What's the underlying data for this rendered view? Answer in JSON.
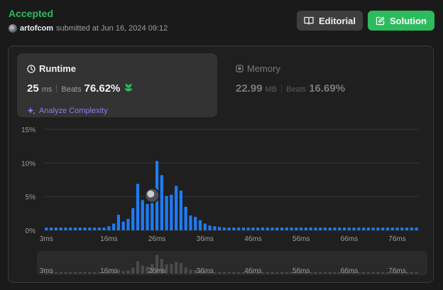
{
  "header": {
    "status": "Accepted",
    "username": "artofcom",
    "submitted_text": "submitted at Jun 16, 2024 09:12"
  },
  "buttons": {
    "editorial": "Editorial",
    "solution": "Solution"
  },
  "runtime": {
    "title": "Runtime",
    "value": "25",
    "unit": "ms",
    "beats_label": "Beats",
    "beats_pct": "76.62%",
    "analyze_label": "Analyze Complexity"
  },
  "memory": {
    "title": "Memory",
    "value": "22.99",
    "unit": "MB",
    "beats_label": "Beats",
    "beats_pct": "16.69%"
  },
  "colors": {
    "accent_green": "#2cbb5d",
    "bar_blue": "#1e7cf5",
    "purple": "#8b7fe8"
  },
  "chart_data": {
    "type": "bar",
    "xlabel": "",
    "ylabel": "",
    "ylim": [
      0,
      15
    ],
    "y_ticks": [
      "0%",
      "5%",
      "10%",
      "15%"
    ],
    "x_ticks": [
      {
        "label": "3ms",
        "at": 3
      },
      {
        "label": "16ms",
        "at": 16
      },
      {
        "label": "26ms",
        "at": 26
      },
      {
        "label": "36ms",
        "at": 36
      },
      {
        "label": "46ms",
        "at": 46
      },
      {
        "label": "56ms",
        "at": 56
      },
      {
        "label": "66ms",
        "at": 66
      },
      {
        "label": "76ms",
        "at": 76
      }
    ],
    "x_start": 3,
    "x_end": 80,
    "values": [
      0.4,
      0.4,
      0.4,
      0.4,
      0.4,
      0.4,
      0.4,
      0.4,
      0.4,
      0.4,
      0.4,
      0.4,
      0.4,
      0.6,
      1.0,
      2.3,
      1.3,
      1.7,
      3.3,
      6.9,
      4.5,
      3.9,
      5.4,
      10.3,
      8.2,
      5.1,
      5.3,
      6.6,
      5.9,
      3.5,
      2.2,
      2.0,
      1.5,
      1.0,
      0.7,
      0.6,
      0.5,
      0.4,
      0.4,
      0.4,
      0.4,
      0.4,
      0.4,
      0.4,
      0.4,
      0.4,
      0.4,
      0.4,
      0.4,
      0.4,
      0.4,
      0.4,
      0.4,
      0.4,
      0.4,
      0.4,
      0.4,
      0.4,
      0.4,
      0.4,
      0.4,
      0.4,
      0.4,
      0.4,
      0.4,
      0.4,
      0.4,
      0.4,
      0.4,
      0.4,
      0.4,
      0.4,
      0.4,
      0.4,
      0.4,
      0.4,
      0.4,
      0.4
    ],
    "highlight_x": 25,
    "grid": true
  }
}
